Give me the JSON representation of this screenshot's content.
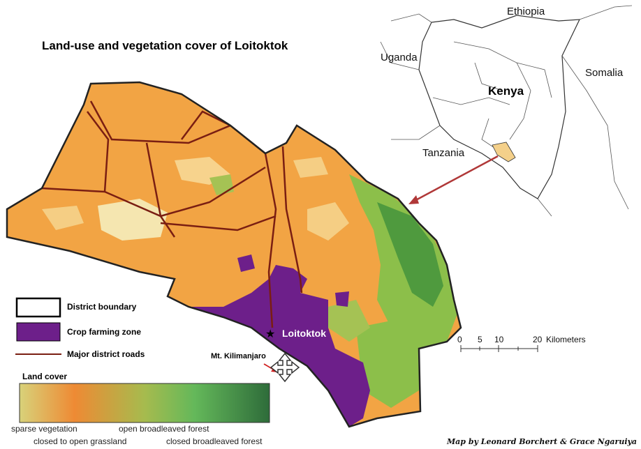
{
  "title": "Land-use and vegetation cover of Loitoktok",
  "inset": {
    "countries": [
      "Ethiopia",
      "Uganda",
      "Somalia",
      "Tanzania"
    ],
    "highlight": "Kenya"
  },
  "legend": {
    "district_boundary": "District boundary",
    "crop_zone": "Crop farming zone",
    "roads": "Major district roads"
  },
  "land_cover": {
    "title": "Land cover",
    "labels": [
      "sparse vegetation",
      "closed to open grassland",
      "open broadleaved forest",
      "closed broadleaved forest"
    ],
    "gradient": [
      "#d8d27a",
      "#ee8a34",
      "#a6bb4e",
      "#64b85a",
      "#2e6c3a"
    ]
  },
  "scale": {
    "ticks": [
      "0",
      "5",
      "10",
      "20"
    ],
    "unit": "Kilometers"
  },
  "places": {
    "town": "Loitoktok",
    "mountain": "Mt. Kilimanjaro"
  },
  "credit": "Map by Leonard Borchert & Grace Ngaruiya",
  "colors": {
    "orange": "#f2a444",
    "crop": "#6d1f8a",
    "road": "#7a1e12",
    "forest_light": "#8cbf4a",
    "forest_dark": "#3f8a3c",
    "sparse": "#f5e6b0",
    "arrow": "#b03838"
  }
}
